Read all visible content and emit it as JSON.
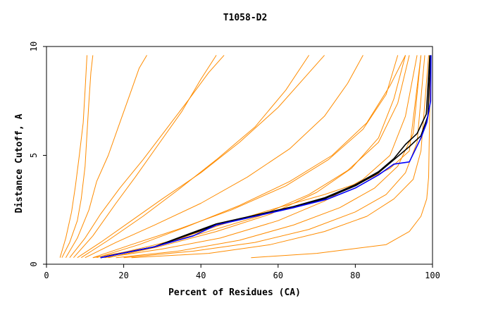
{
  "chart_data": {
    "type": "line",
    "title": "T1058-D2",
    "xlabel": "Percent of Residues (CA)",
    "ylabel": "Distance Cutoff, A",
    "xlim": [
      0,
      100
    ],
    "ylim": [
      0,
      10
    ],
    "xticks": [
      "0",
      "20",
      "40",
      "60",
      "80",
      "100"
    ],
    "yticks": [
      "0",
      "5",
      "10"
    ],
    "grid": false,
    "colors": {
      "background_series": "#ff8c00",
      "highlight_dark": "#000000",
      "highlight_blue": "#0000ff",
      "axes": "#000000"
    },
    "series": [
      {
        "color": "#ff8c00",
        "x": [
          4,
          6,
          8,
          9,
          10,
          10.5,
          11,
          11.5,
          12
        ],
        "y": [
          0.3,
          1,
          2,
          3,
          4.5,
          6,
          7.5,
          8.8,
          9.6
        ]
      },
      {
        "color": "#ff8c00",
        "x": [
          5,
          8,
          11,
          13,
          16,
          19,
          22,
          24,
          26
        ],
        "y": [
          0.3,
          1.2,
          2.5,
          3.8,
          5,
          6.5,
          8,
          9,
          9.6
        ]
      },
      {
        "color": "#ff8c00",
        "x": [
          6,
          10,
          14,
          19,
          25,
          31,
          37,
          42,
          46
        ],
        "y": [
          0.3,
          1.2,
          2.3,
          3.5,
          4.8,
          6.2,
          7.6,
          8.8,
          9.6
        ]
      },
      {
        "color": "#ff8c00",
        "x": [
          8,
          14,
          22,
          30,
          40,
          50,
          60,
          67,
          72
        ],
        "y": [
          0.3,
          1,
          2,
          3,
          4.2,
          5.6,
          7.2,
          8.6,
          9.6
        ]
      },
      {
        "color": "#ff8c00",
        "x": [
          10,
          18,
          28,
          40,
          52,
          63,
          72,
          78,
          82
        ],
        "y": [
          0.3,
          1,
          1.8,
          2.8,
          4,
          5.3,
          6.8,
          8.3,
          9.6
        ]
      },
      {
        "color": "#ff8c00",
        "x": [
          12,
          22,
          34,
          48,
          62,
          73,
          82,
          88,
          91
        ],
        "y": [
          0.3,
          0.9,
          1.6,
          2.5,
          3.6,
          4.8,
          6.2,
          7.8,
          9.6
        ]
      },
      {
        "color": "#ff8c00",
        "x": [
          14,
          26,
          40,
          55,
          68,
          78,
          86,
          91,
          94
        ],
        "y": [
          0.3,
          0.8,
          1.4,
          2.2,
          3.2,
          4.3,
          5.6,
          7.4,
          9.6
        ]
      },
      {
        "color": "#ff8c00",
        "x": [
          15,
          30,
          45,
          60,
          72,
          82,
          89,
          93,
          96
        ],
        "y": [
          0.3,
          0.7,
          1.2,
          2,
          2.9,
          3.9,
          5,
          6.8,
          9.6
        ]
      },
      {
        "color": "#ff8c00",
        "x": [
          18,
          34,
          50,
          64,
          76,
          85,
          91,
          95,
          97
        ],
        "y": [
          0.3,
          0.6,
          1.1,
          1.8,
          2.6,
          3.5,
          4.5,
          6,
          9.6
        ]
      },
      {
        "color": "#ff8c00",
        "x": [
          20,
          38,
          54,
          68,
          80,
          88,
          93,
          96,
          98
        ],
        "y": [
          0.3,
          0.6,
          1,
          1.6,
          2.4,
          3.2,
          4.2,
          5.6,
          9.6
        ]
      },
      {
        "color": "#ff8c00",
        "x": [
          22,
          42,
          58,
          72,
          83,
          90,
          95,
          97,
          99
        ],
        "y": [
          0.3,
          0.5,
          0.9,
          1.5,
          2.2,
          3,
          3.9,
          5.2,
          9.6
        ]
      },
      {
        "color": "#ff8c00",
        "x": [
          53,
          70,
          88,
          94,
          97,
          98.5,
          99,
          99.5
        ],
        "y": [
          0.3,
          0.5,
          0.9,
          1.5,
          2.2,
          3,
          4,
          9.6
        ]
      },
      {
        "color": "#ff8c00",
        "x": [
          12,
          28,
          45,
          60,
          72,
          82,
          89,
          94,
          97
        ],
        "y": [
          0.3,
          0.8,
          1.8,
          2.6,
          3.2,
          3.8,
          4.4,
          5.2,
          9.6
        ]
      },
      {
        "color": "#ff8c00",
        "x": [
          3.5,
          5,
          6.5,
          7.5,
          8.5,
          9.5,
          10,
          10.5
        ],
        "y": [
          0.3,
          1.2,
          2.4,
          3.6,
          5,
          6.5,
          8,
          9.6
        ]
      },
      {
        "color": "#ff8c00",
        "x": [
          7,
          12,
          18,
          23,
          29,
          35,
          40,
          44
        ],
        "y": [
          0.3,
          1.3,
          2.8,
          4,
          5.5,
          7,
          8.5,
          9.6
        ]
      },
      {
        "color": "#ff8c00",
        "x": [
          9,
          16,
          25,
          34,
          44,
          54,
          62,
          68
        ],
        "y": [
          0.3,
          1.1,
          2.2,
          3.4,
          4.8,
          6.3,
          8,
          9.6
        ]
      },
      {
        "color": "#ff8c00",
        "x": [
          13,
          24,
          36,
          50,
          63,
          74,
          83,
          89,
          93
        ],
        "y": [
          0.3,
          0.9,
          1.7,
          2.7,
          3.8,
          5,
          6.5,
          8.2,
          9.6
        ]
      },
      {
        "color": "#ff8c00",
        "x": [
          16,
          29,
          44,
          58,
          70,
          79,
          86,
          90,
          93
        ],
        "y": [
          0.3,
          0.8,
          1.5,
          2.3,
          3.3,
          4.4,
          5.8,
          7.6,
          9.6
        ]
      },
      {
        "color": "#000000",
        "x": [
          14,
          28,
          36,
          44,
          54,
          64,
          72,
          80,
          86,
          90,
          94,
          97,
          98.8,
          99.5
        ],
        "y": [
          0.3,
          0.8,
          1.3,
          1.8,
          2.2,
          2.6,
          3.0,
          3.6,
          4.2,
          4.8,
          5.4,
          5.9,
          6.8,
          9.6
        ]
      },
      {
        "color": "#000000",
        "x": [
          14,
          28,
          37,
          44,
          54,
          64,
          72,
          80,
          86,
          90,
          93,
          96,
          98.4,
          99.3
        ],
        "y": [
          0.3,
          0.8,
          1.4,
          1.85,
          2.25,
          2.65,
          3.05,
          3.65,
          4.25,
          4.85,
          5.5,
          6,
          6.9,
          9.6
        ]
      },
      {
        "color": "#0000ff",
        "x": [
          14,
          28,
          38,
          44,
          54,
          64,
          73,
          80,
          86,
          90,
          94,
          97,
          98.5,
          99.5,
          99.6
        ],
        "y": [
          0.3,
          0.8,
          1.3,
          1.8,
          2.2,
          2.6,
          3.0,
          3.5,
          4.1,
          4.6,
          4.7,
          5.8,
          6.5,
          7.5,
          9.6
        ]
      }
    ]
  }
}
